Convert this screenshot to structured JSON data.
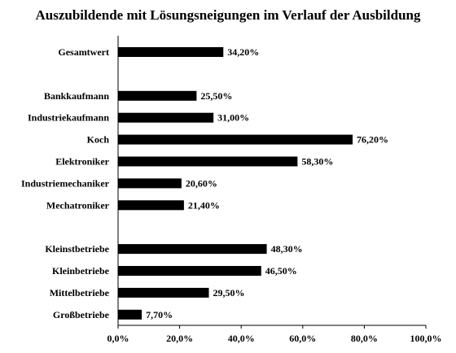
{
  "chart_data": {
    "type": "bar",
    "orientation": "horizontal",
    "title": "Auszubildende  mit Lösungsneigungen im Verlauf der Ausbildung",
    "categories": [
      "Gesamtwert",
      "Bankkaufmann",
      "Industriekaufmann",
      "Koch",
      "Elektroniker",
      "Industriemechaniker",
      "Mechatroniker",
      "Kleinstbetriebe",
      "Kleinbetriebe",
      "Mittelbetriebe",
      "Großbetriebe"
    ],
    "values": [
      34.2,
      25.5,
      31.0,
      76.2,
      58.3,
      20.6,
      21.4,
      48.3,
      46.5,
      29.5,
      7.7
    ],
    "value_labels": [
      "34,20%",
      "25,50%",
      "31,00%",
      "76,20%",
      "58,30%",
      "20,60%",
      "21,40%",
      "48,30%",
      "46,50%",
      "29,50%",
      "7,70%"
    ],
    "groups": [
      [
        "Gesamtwert"
      ],
      [
        "Bankkaufmann",
        "Industriekaufmann",
        "Koch",
        "Elektroniker",
        "Industriemechaniker",
        "Mechatroniker"
      ],
      [
        "Kleinstbetriebe",
        "Kleinbetriebe",
        "Mittelbetriebe",
        "Großbetriebe"
      ]
    ],
    "xlim": [
      0,
      100
    ],
    "xticks": [
      0,
      20,
      40,
      60,
      80,
      100
    ],
    "xtick_labels": [
      "0,0%",
      "20,0%",
      "40,0%",
      "60,0%",
      "80,0%",
      "100,0%"
    ],
    "xlabel": "",
    "ylabel": "",
    "grid": false,
    "legend": "none",
    "bar_color": "#000000"
  }
}
